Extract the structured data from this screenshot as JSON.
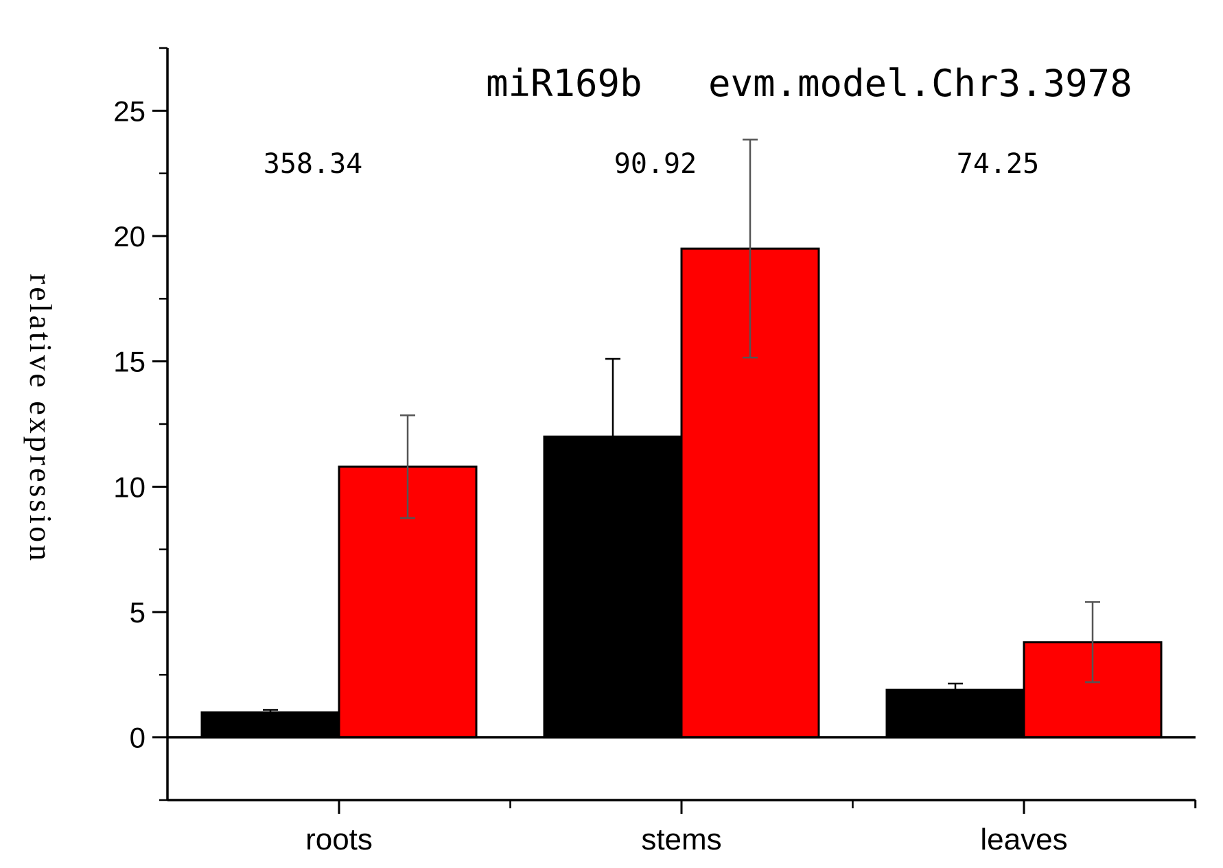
{
  "chart_data": {
    "type": "bar",
    "title_left": "miR169b",
    "title_right": "evm.model.Chr3.3978",
    "xlabel": "",
    "ylabel": "relative expression",
    "categories": [
      "roots",
      "stems",
      "leaves"
    ],
    "ylim": [
      -2.5,
      27.5
    ],
    "yticks": [
      0,
      5,
      10,
      15,
      20,
      25
    ],
    "series": [
      {
        "color": "#000000",
        "values": [
          1.0,
          12.0,
          1.9
        ],
        "errors": [
          0.1,
          3.1,
          0.25
        ],
        "error_color": "#000000"
      },
      {
        "color": "#ff0000",
        "values": [
          10.8,
          19.5,
          3.8
        ],
        "errors": [
          2.05,
          4.35,
          1.6
        ],
        "error_color": "#555555"
      }
    ],
    "annotations": [
      {
        "text": "358.34",
        "category": "roots",
        "y": 22.9
      },
      {
        "text": "90.92",
        "category": "stems",
        "y": 22.9
      },
      {
        "text": "74.25",
        "category": "leaves",
        "y": 22.9
      }
    ],
    "grid": false,
    "legend": "none"
  }
}
